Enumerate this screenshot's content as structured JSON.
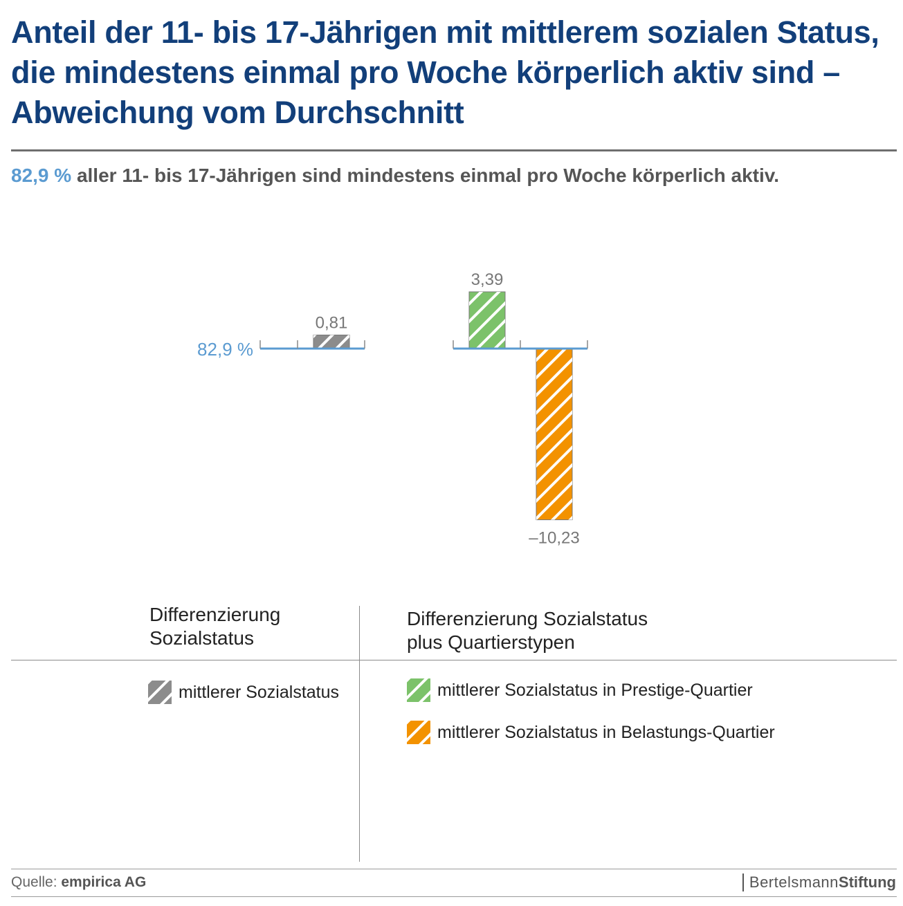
{
  "title_lines": [
    "Anteil der 11- bis 17-Jährigen mit mittlerem sozialen Status,",
    "die mindestens einmal pro Woche körperlich aktiv sind –",
    "Abweichung vom Durchschnitt"
  ],
  "subtitle": {
    "value": "82,9 %",
    "text": " aller 11- bis 17-Jährigen sind mindestens einmal pro Woche körperlich aktiv."
  },
  "colors": {
    "title": "#123f7a",
    "accent": "#5b9bd1",
    "gray": "#8c8c8c",
    "green": "#7cc26a",
    "orange": "#f39200"
  },
  "chart_data": {
    "type": "bar",
    "baseline_label": "82,9 %",
    "baseline_value": 82.9,
    "groups": [
      {
        "name": "Differenzierung Sozialstatus",
        "bars": [
          {
            "category": "mittlerer Sozialstatus",
            "value": 0.81,
            "label": "0,81",
            "color": "#8c8c8c"
          }
        ]
      },
      {
        "name": "Differenzierung Sozialstatus plus Quartierstypen",
        "bars": [
          {
            "category": "mittlerer Sozialstatus in Prestige-Quartier",
            "value": 3.39,
            "label": "3,39",
            "color": "#7cc26a"
          },
          {
            "category": "mittlerer Sozialstatus in Belastungs-Quartier",
            "value": -10.23,
            "label": "–10,23",
            "color": "#f39200"
          }
        ]
      }
    ]
  },
  "legend": {
    "col1_heading_line1": "Differenzierung",
    "col1_heading_line2": "Sozialstatus",
    "col2_heading_line1": "Differenzierung Sozialstatus",
    "col2_heading_line2": "plus Quartierstypen",
    "items": [
      {
        "label": "mittlerer Sozialstatus",
        "color": "#8c8c8c"
      },
      {
        "label": "mittlerer Sozialstatus in Prestige-Quartier",
        "color": "#7cc26a"
      },
      {
        "label": "mittlerer Sozialstatus in Belastungs-Quartier",
        "color": "#f39200"
      }
    ]
  },
  "footer": {
    "source_prefix": "Quelle: ",
    "source_name": "empirica AG",
    "brand_part1": "Bertelsmann",
    "brand_part2": "Stiftung"
  }
}
